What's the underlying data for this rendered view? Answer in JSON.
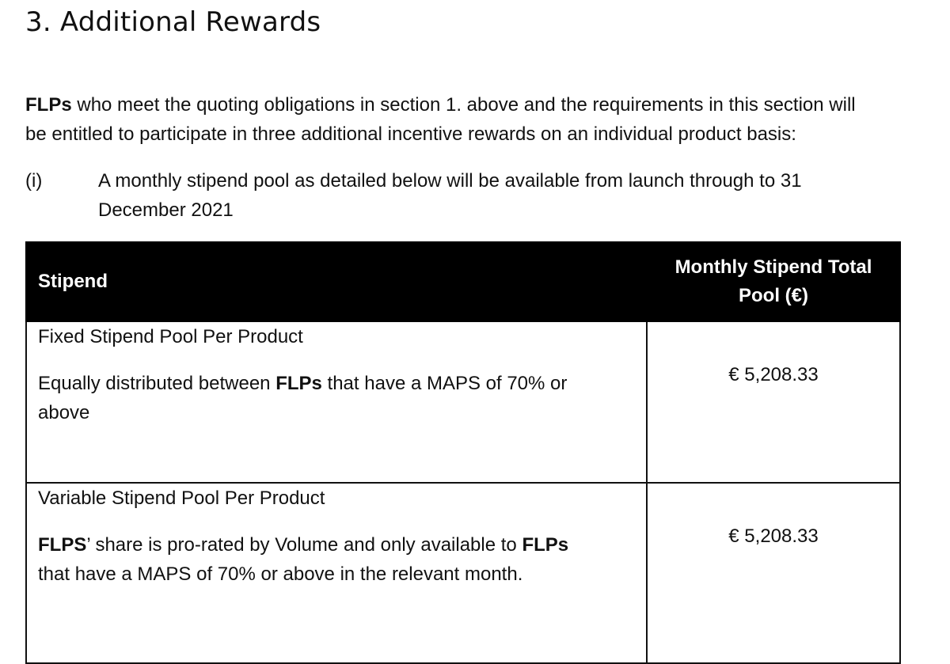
{
  "section_heading": "3. Additional Rewards",
  "intro": {
    "bold_term": "FLPs",
    "text_line1": " who meet the quoting obligations in section 1. above and the requirements in this section will",
    "text_line2": "be entitled to participate in three additional incentive rewards on an individual product basis:"
  },
  "list_item": {
    "marker": "(i)",
    "text_line1": "A monthly stipend pool as detailed below will be available from launch through to 31",
    "text_line2": "December 2021"
  },
  "table": {
    "header": {
      "col_stipend": "Stipend",
      "col_pool_line1": "Monthly Stipend Total",
      "col_pool_line2": "Pool (€)"
    },
    "rows": [
      {
        "title": "Fixed Stipend Pool Per Product",
        "desc_pre": "Equally distributed between ",
        "desc_bold": "FLPs",
        "desc_post_line1": " that have a MAPS of 70% or",
        "desc_line2": "above",
        "amount": "€ 5,208.33"
      },
      {
        "title": "Variable Stipend Pool Per Product",
        "desc_bold1": "FLPS",
        "desc_mid": "’ share is pro-rated by Volume and only available to ",
        "desc_bold2": "FLPs",
        "desc_line2": "that have a MAPS of 70% or above in the relevant month.",
        "amount": "€ 5,208.33"
      }
    ]
  }
}
